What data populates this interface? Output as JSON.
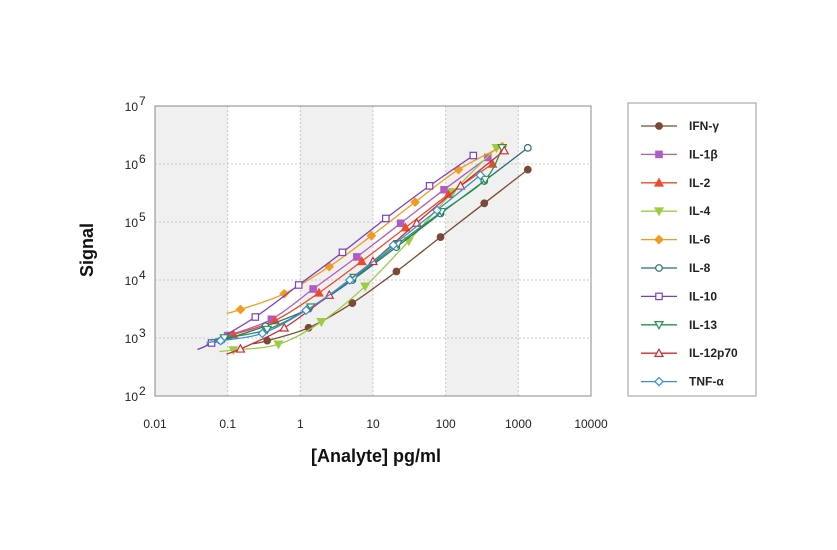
{
  "chart_data": {
    "type": "scatter",
    "title": "",
    "xlabel": "[Analyte] pg/ml",
    "ylabel": "Signal",
    "xscale": "log",
    "yscale": "log",
    "xlim": [
      0.01,
      10000
    ],
    "ylim": [
      100,
      10000000
    ],
    "x_tick_labels": [
      "0.01",
      "0.1",
      "1",
      "10",
      "100",
      "1000",
      "10000"
    ],
    "y_tick_labels": [
      {
        "base": "10",
        "exp": "2"
      },
      {
        "base": "10",
        "exp": "3"
      },
      {
        "base": "10",
        "exp": "4"
      },
      {
        "base": "10",
        "exp": "5"
      },
      {
        "base": "10",
        "exp": "6"
      },
      {
        "base": "10",
        "exp": "7"
      }
    ],
    "shaded_decades": [
      [
        0.01,
        0.1
      ],
      [
        1,
        10
      ],
      [
        100,
        1000
      ]
    ],
    "grid": true,
    "legend_position": "right",
    "series": [
      {
        "name": "IFN-γ",
        "color": "#7a4a36",
        "marker": "circle",
        "filled": true,
        "x": [
          0.35,
          1.3,
          5.2,
          21,
          85,
          340,
          1350
        ],
        "y": [
          900,
          1500,
          4000,
          14000,
          55000,
          210000,
          800000
        ]
      },
      {
        "name": "IL-1β",
        "color": "#b05cc0",
        "marker": "square",
        "filled": true,
        "x": [
          0.1,
          0.4,
          1.5,
          6,
          24,
          95,
          380
        ],
        "y": [
          1100,
          2100,
          7000,
          25000,
          95000,
          360000,
          1300000
        ]
      },
      {
        "name": "IL-2",
        "color": "#ee4a2a",
        "marker": "triangle-up",
        "filled": true,
        "x": [
          0.12,
          0.45,
          1.8,
          7,
          28,
          110,
          440
        ],
        "y": [
          1150,
          2000,
          6000,
          21000,
          80000,
          300000,
          1000000
        ]
      },
      {
        "name": "IL-4",
        "color": "#9ccc42",
        "marker": "triangle-down",
        "filled": true,
        "x": [
          0.12,
          0.5,
          1.95,
          7.8,
          31,
          125,
          500
        ],
        "y": [
          620,
          780,
          1900,
          7800,
          47000,
          330000,
          1900000
        ]
      },
      {
        "name": "IL-6",
        "color": "#f39b1c",
        "marker": "diamond",
        "filled": true,
        "x": [
          0.15,
          0.6,
          2.5,
          9.5,
          38,
          150,
          600
        ],
        "y": [
          3100,
          5800,
          17000,
          58000,
          220000,
          800000,
          2000000
        ]
      },
      {
        "name": "IL-8",
        "color": "#2b6f7a",
        "marker": "circle",
        "filled": false,
        "x": [
          0.08,
          0.33,
          1.3,
          5.2,
          21,
          85,
          340,
          1350
        ],
        "y": [
          900,
          1600,
          3200,
          10000,
          37000,
          140000,
          510000,
          1900000
        ]
      },
      {
        "name": "IL-10",
        "color": "#7a3fc2",
        "marker": "square",
        "filled": false,
        "x": [
          0.06,
          0.24,
          0.95,
          3.8,
          15,
          60,
          240
        ],
        "y": [
          820,
          2300,
          8200,
          30000,
          115000,
          420000,
          1400000
        ]
      },
      {
        "name": "IL-13",
        "color": "#22964a",
        "marker": "triangle-down",
        "filled": false,
        "x": [
          0.09,
          0.35,
          1.4,
          5.5,
          22,
          88,
          350,
          600
        ],
        "y": [
          1000,
          1400,
          3400,
          11000,
          42000,
          150000,
          540000,
          1900000
        ]
      },
      {
        "name": "IL-12p70",
        "color": "#cc2d33",
        "marker": "triangle-up",
        "filled": false,
        "x": [
          0.15,
          0.6,
          2.5,
          10,
          40,
          160,
          640
        ],
        "y": [
          650,
          1500,
          5500,
          21000,
          96000,
          420000,
          1700000
        ]
      },
      {
        "name": "TNF-α",
        "color": "#3a8dd8",
        "marker": "diamond",
        "filled": false,
        "x": [
          0.08,
          0.3,
          1.2,
          4.8,
          19,
          76,
          300
        ],
        "y": [
          900,
          1200,
          3000,
          10000,
          40000,
          160000,
          640000
        ]
      }
    ]
  }
}
